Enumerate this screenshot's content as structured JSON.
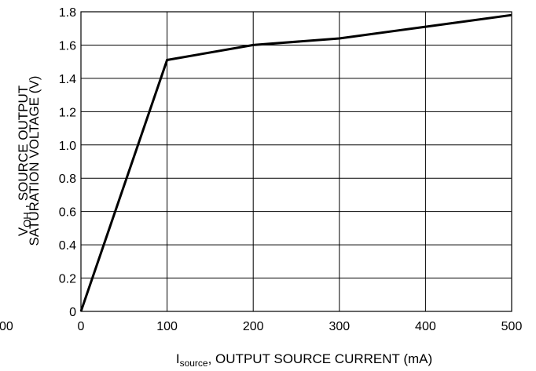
{
  "chart_data": {
    "type": "line",
    "x": [
      0,
      100,
      200,
      300,
      400,
      500
    ],
    "series": [
      {
        "x": [
          0,
          100,
          200,
          300,
          400,
          500
        ],
        "values": [
          0,
          1.51,
          1.6,
          1.64,
          1.71,
          1.78
        ]
      }
    ],
    "xlim": [
      0,
      500
    ],
    "ylim": [
      0,
      1.8
    ],
    "x_ticks": [
      "0",
      "100",
      "200",
      "300",
      "400",
      "500"
    ],
    "y_ticks": [
      "0",
      "0.2",
      "0.4",
      "0.6",
      "0.8",
      "1.0",
      "1.2",
      "1.4",
      "1.6",
      "1.8"
    ],
    "x_left_fragment": "00",
    "xlabel": {
      "main": "I",
      "sub": "source",
      "rest": ", OUTPUT SOURCE CURRENT (mA)"
    },
    "ylabel": {
      "line1_main": "V",
      "line1_sub": "OH",
      "line1_rest": " , SOURCE OUTPUT",
      "line2": "SATURATION VOLTAGE (V)"
    },
    "grid": true,
    "colors": {
      "line": "#000000",
      "grid": "#000000"
    }
  }
}
